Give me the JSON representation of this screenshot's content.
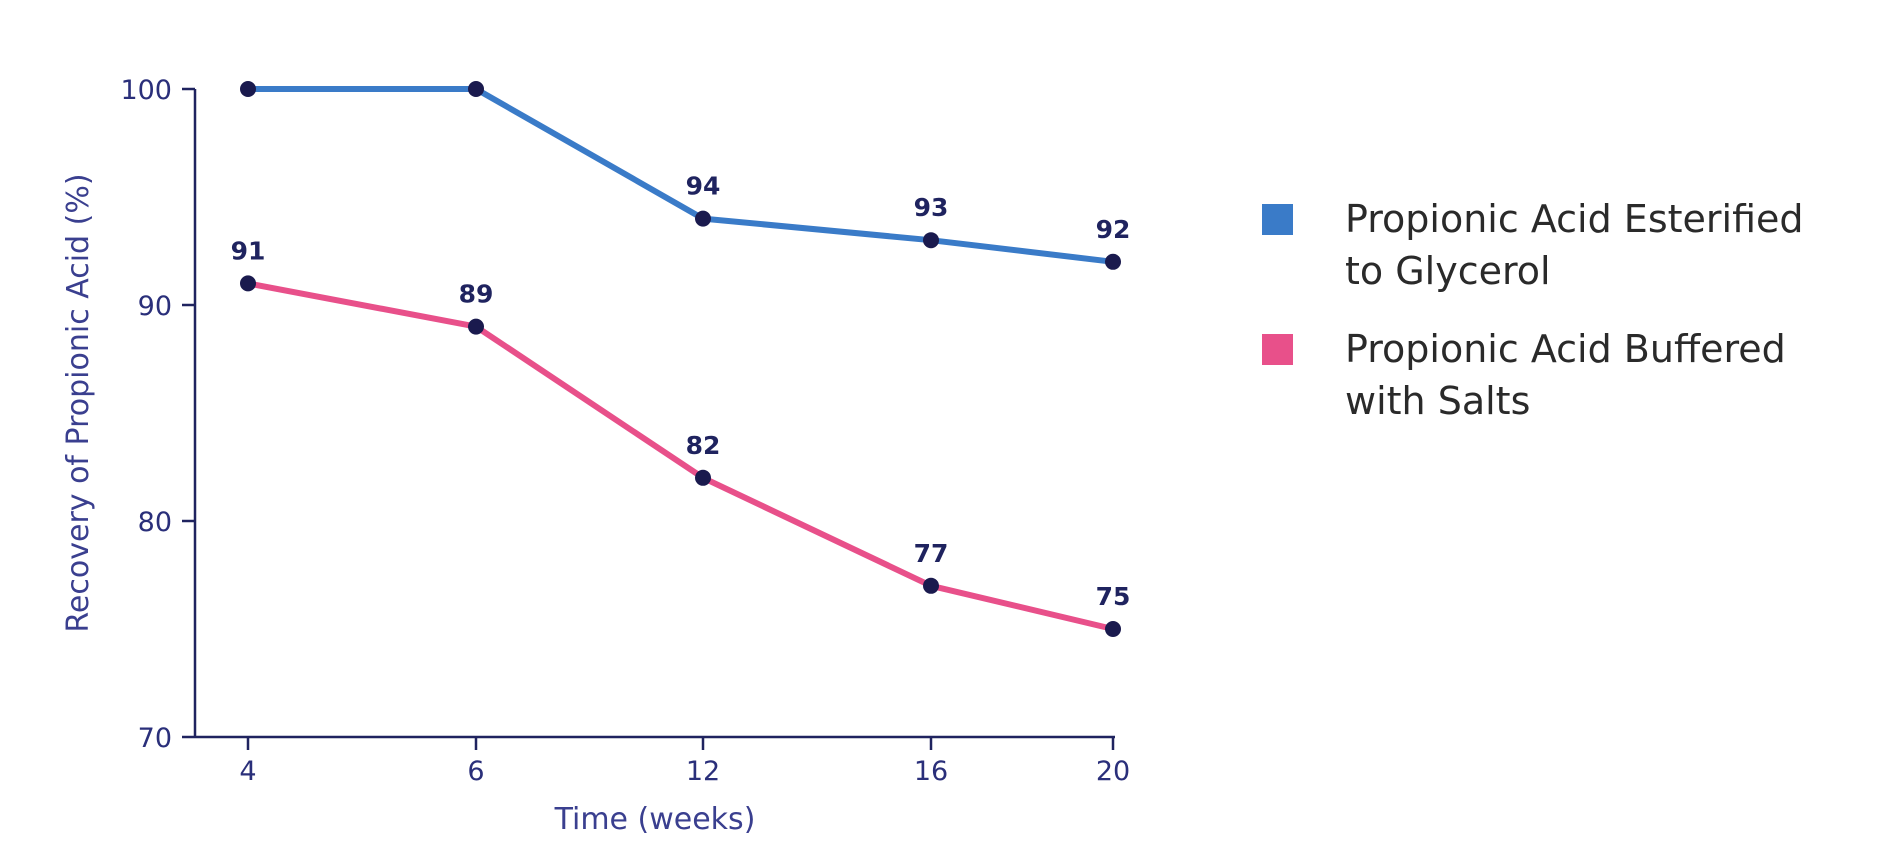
{
  "chart_data": {
    "type": "line",
    "title": "",
    "xlabel": "Time (weeks)",
    "ylabel": "Recovery of Propionic Acid (%)",
    "categories": [
      "4",
      "6",
      "12",
      "16",
      "20"
    ],
    "yticks": [
      "70",
      "80",
      "90",
      "100"
    ],
    "ylim": [
      70,
      100
    ],
    "grid": false,
    "legend_position": "right",
    "series": [
      {
        "name": "Propionic Acid Esterified to Glycerol",
        "legend_lines": [
          "Propionic Acid Esterified",
          "to Glycerol"
        ],
        "color": "#3a7bc8",
        "values": [
          100,
          100,
          94,
          93,
          92
        ],
        "labels": [
          "",
          "",
          "94",
          "93",
          "92"
        ]
      },
      {
        "name": "Propionic Acid Buffered with Salts",
        "legend_lines": [
          "Propionic Acid Buffered",
          "with Salts"
        ],
        "color": "#e8508a",
        "values": [
          91,
          89,
          82,
          77,
          75
        ],
        "labels": [
          "91",
          "89",
          "82",
          "77",
          "75"
        ]
      }
    ],
    "colors": {
      "axis": "#1f235f",
      "marker": "#1a1a4e"
    }
  }
}
